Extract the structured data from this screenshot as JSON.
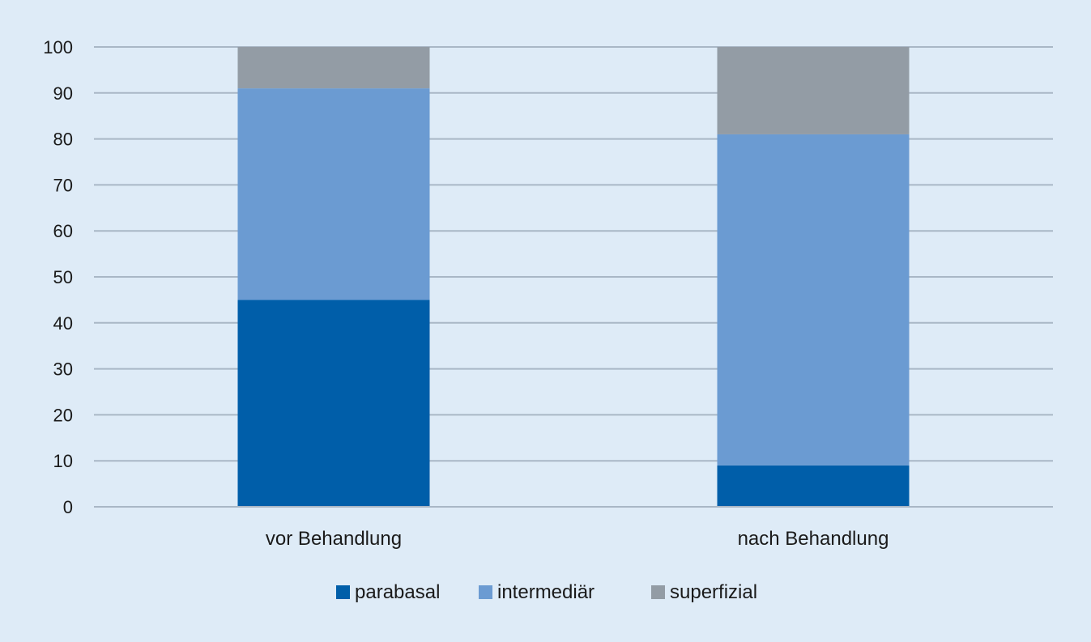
{
  "chart_data": {
    "type": "bar",
    "stacked": true,
    "categories": [
      "vor Behandlung",
      "nach Behandlung"
    ],
    "series": [
      {
        "name": "parabasal",
        "color": "#005ea9",
        "values": [
          45,
          9
        ]
      },
      {
        "name": "intermediär",
        "color": "#6b9bd2",
        "values": [
          46,
          72
        ]
      },
      {
        "name": "superfizial",
        "color": "#939ca5",
        "values": [
          9,
          19
        ]
      }
    ],
    "ylim": [
      0,
      100
    ],
    "yticks": [
      0,
      10,
      20,
      30,
      40,
      50,
      60,
      70,
      80,
      90,
      100
    ],
    "grid": true,
    "legend_position": "bottom"
  }
}
